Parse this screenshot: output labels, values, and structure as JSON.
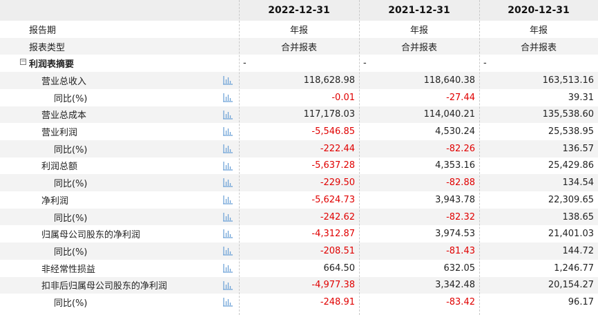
{
  "columns": [
    "2022-12-31",
    "2021-12-31",
    "2020-12-31"
  ],
  "meta_rows": [
    {
      "label": "报告期",
      "values": [
        "年报",
        "年报",
        "年报"
      ]
    },
    {
      "label": "报表类型",
      "values": [
        "合并报表",
        "合并报表",
        "合并报表"
      ]
    }
  ],
  "section": {
    "toggle": "⊟",
    "label": "利润表摘要",
    "values": [
      "-",
      "-",
      "-"
    ]
  },
  "rows": [
    {
      "label": "营业总收入",
      "level": 1,
      "values": [
        "118,628.98",
        "118,640.38",
        "163,513.16"
      ]
    },
    {
      "label": "同比(%)",
      "level": 2,
      "values": [
        "-0.01",
        "-27.44",
        "39.31"
      ]
    },
    {
      "label": "营业总成本",
      "level": 1,
      "values": [
        "117,178.03",
        "114,040.21",
        "135,538.60"
      ]
    },
    {
      "label": "营业利润",
      "level": 1,
      "values": [
        "-5,546.85",
        "4,530.24",
        "25,538.95"
      ]
    },
    {
      "label": "同比(%)",
      "level": 2,
      "values": [
        "-222.44",
        "-82.26",
        "136.57"
      ]
    },
    {
      "label": "利润总额",
      "level": 1,
      "values": [
        "-5,637.28",
        "4,353.16",
        "25,429.86"
      ]
    },
    {
      "label": "同比(%)",
      "level": 2,
      "values": [
        "-229.50",
        "-82.88",
        "134.54"
      ]
    },
    {
      "label": "净利润",
      "level": 1,
      "values": [
        "-5,624.73",
        "3,943.78",
        "22,309.65"
      ]
    },
    {
      "label": "同比(%)",
      "level": 2,
      "values": [
        "-242.62",
        "-82.32",
        "138.65"
      ]
    },
    {
      "label": "归属母公司股东的净利润",
      "level": 1,
      "values": [
        "-4,312.87",
        "3,974.53",
        "21,401.03"
      ]
    },
    {
      "label": "同比(%)",
      "level": 2,
      "values": [
        "-208.51",
        "-81.43",
        "144.72"
      ]
    },
    {
      "label": "非经常性损益",
      "level": 1,
      "values": [
        "664.50",
        "632.05",
        "1,246.77"
      ]
    },
    {
      "label": "扣非后归属母公司股东的净利润",
      "level": 1,
      "values": [
        "-4,977.38",
        "3,342.48",
        "20,154.27"
      ]
    },
    {
      "label": "同比(%)",
      "level": 2,
      "values": [
        "-248.91",
        "-83.42",
        "96.17"
      ]
    }
  ],
  "colors": {
    "negative": "#e00000",
    "positive": "#222222",
    "header_bg": "#eeeeee",
    "alt_bg": "#f3f3f3",
    "icon": "#6fa3d8"
  },
  "icons": {
    "chart": "bar-chart-icon",
    "collapse": "collapse-box-icon"
  }
}
